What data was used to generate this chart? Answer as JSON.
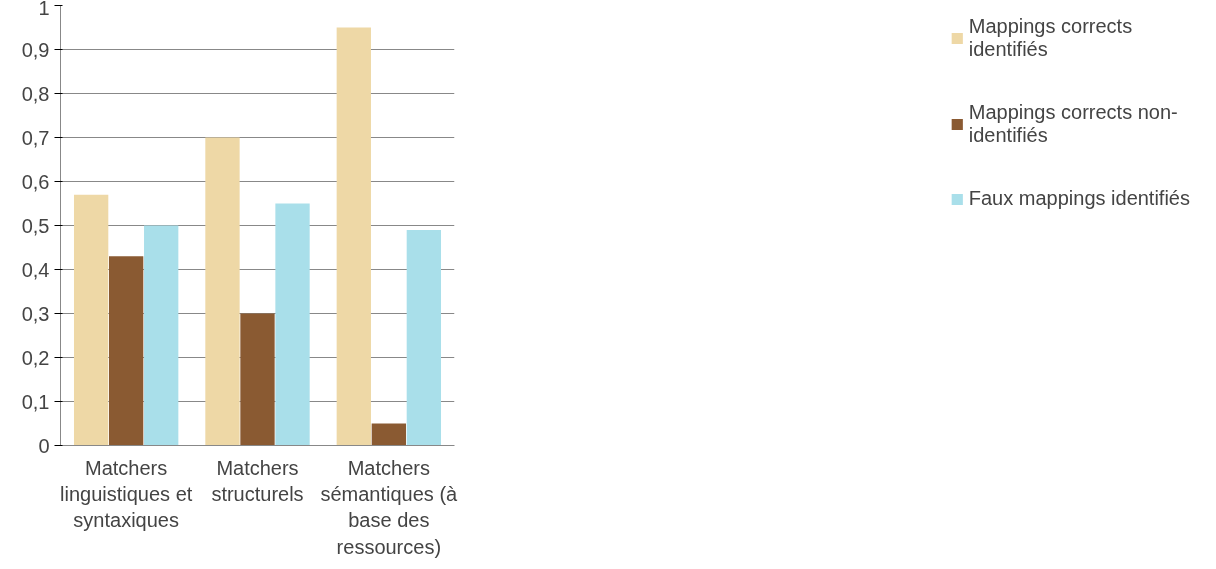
{
  "chart_data": {
    "type": "bar",
    "categories": [
      "Matchers linguistiques et syntaxiques",
      "Matchers structurels",
      "Matchers sémantiques (à base des ressources)"
    ],
    "series": [
      {
        "name": "Mappings corrects identifiés",
        "color": "#eed8a6",
        "values": [
          0.57,
          0.7,
          0.95
        ]
      },
      {
        "name": "Mappings corrects non-identifiés",
        "color": "#8a5a32",
        "values": [
          0.43,
          0.3,
          0.05
        ]
      },
      {
        "name": "Faux mappings identifiés",
        "color": "#a9dfea",
        "values": [
          0.5,
          0.55,
          0.49
        ]
      }
    ],
    "ylim": [
      0,
      1
    ],
    "yticks": [
      0,
      {
        "value": 0.1,
        "label": "0,1"
      },
      {
        "value": 0.2,
        "label": "0,2"
      },
      {
        "value": 0.3,
        "label": "0,3"
      },
      {
        "value": 0.4,
        "label": "0,4"
      },
      {
        "value": 0.5,
        "label": "0,5"
      },
      {
        "value": 0.6,
        "label": "0,6"
      },
      {
        "value": 0.7,
        "label": "0,7"
      },
      {
        "value": 0.8,
        "label": "0,8"
      },
      {
        "value": 0.9,
        "label": "0,9"
      },
      1
    ],
    "grid": "y",
    "legend": "right"
  }
}
